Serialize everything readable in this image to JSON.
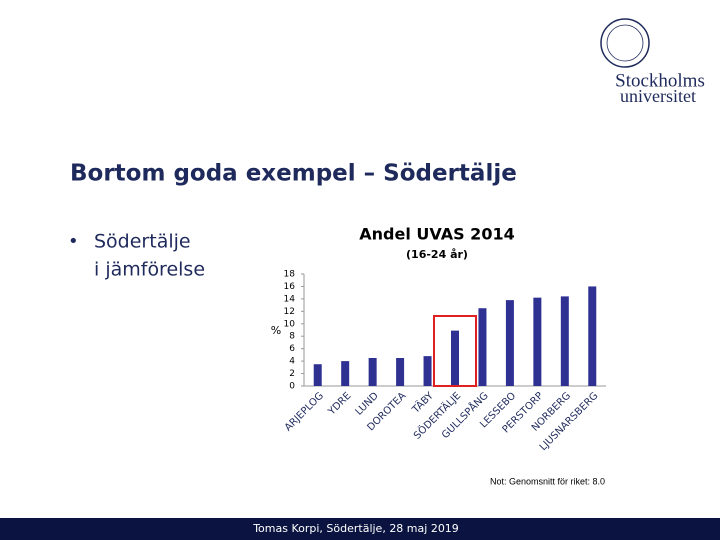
{
  "logo": {
    "line1": "Stockholms",
    "line2": "universitet"
  },
  "slide_title": "Bortom goda exempel – Södertälje",
  "bullet_lines": [
    "Södertälje",
    "i jämförelse"
  ],
  "chart_data": {
    "type": "bar",
    "title": "Andel UVAS 2014",
    "subtitle": "(16-24 år)",
    "y_label": "%",
    "categories": [
      "ARJEPLOG",
      "YDRE",
      "LUND",
      "DOROTEA",
      "TÄBY",
      "SÖDERTÄLJE",
      "GULLSPÅNG",
      "LESSEBO",
      "PERSTORP",
      "NORBERG",
      "LJUSNARSBERG"
    ],
    "values": [
      3.5,
      4.0,
      4.5,
      4.5,
      4.8,
      8.9,
      12.5,
      13.8,
      14.2,
      14.4,
      16.0
    ],
    "color": "#2e3192",
    "ylim": [
      0,
      18
    ],
    "yticks": [
      0,
      2,
      4,
      6,
      8,
      10,
      12,
      14,
      16,
      18
    ],
    "grid": false,
    "note": "Not: Genomsnitt för riket: 8.0"
  },
  "footer": "Tomas Korpi, Södertälje, 28 maj 2019"
}
